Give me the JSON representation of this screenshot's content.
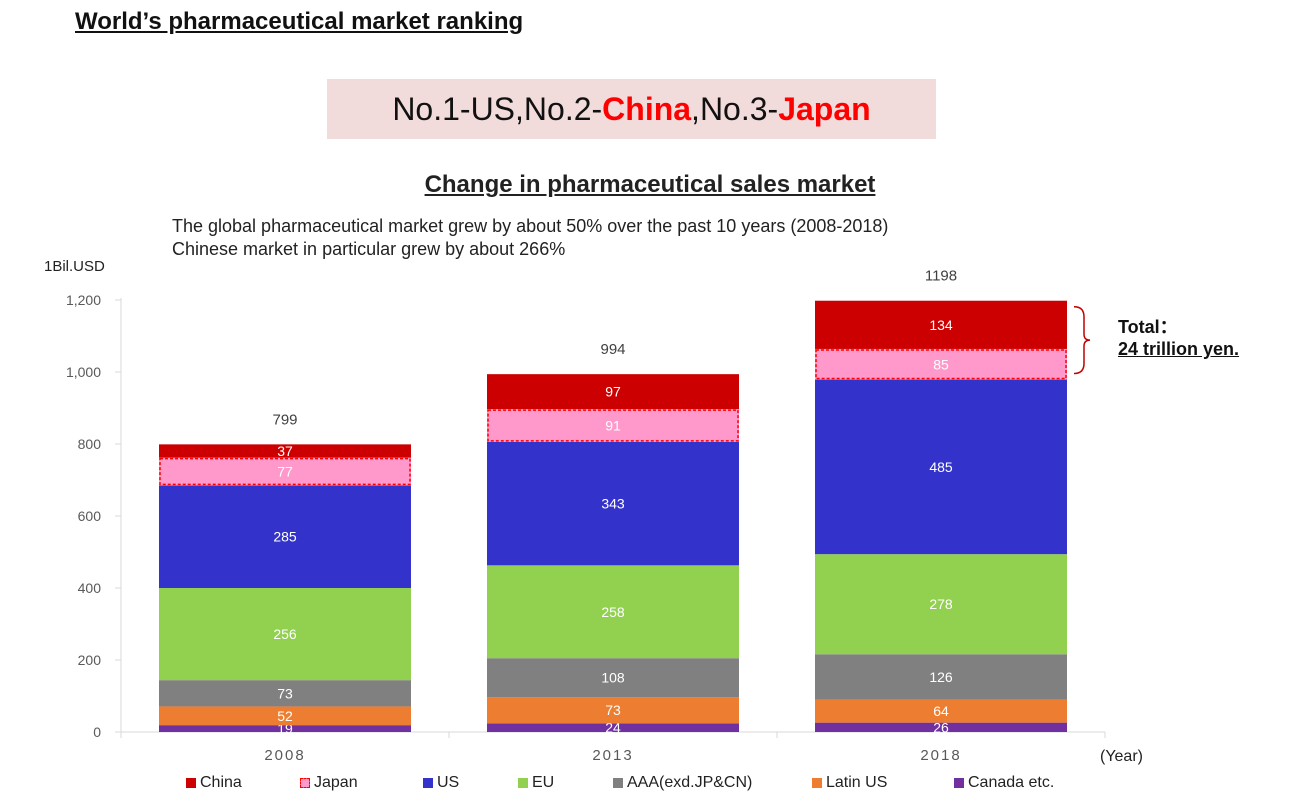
{
  "page": {
    "title": "World’s pharmaceutical market ranking",
    "ranking": {
      "part1": "No.1-US,No.2-",
      "china": "China",
      "part2": ",No.3-",
      "japan": "Japan"
    },
    "chart_heading": "Change in pharmaceutical sales market",
    "subtitle_line1": "The global pharmaceutical market grew by about 50% over the past 10 years (2008-2018)",
    "subtitle_line2": "Chinese market in particular grew by about 266%",
    "unit_label": "1Bil.USD",
    "year_label": "(Year)",
    "total_note_line1": "Total：",
    "total_note_line2": "24 trillion yen."
  },
  "chart_data": {
    "type": "bar",
    "stacked": true,
    "categories": [
      "2008",
      "2013",
      "2018"
    ],
    "totals": [
      799,
      994,
      1198
    ],
    "ylim": [
      0,
      1200
    ],
    "yticks": [
      0,
      200,
      400,
      600,
      800,
      1000,
      1200
    ],
    "ytick_labels": [
      "0",
      "200",
      "400",
      "600",
      "800",
      "1,000",
      "1,200"
    ],
    "ylabel": "1Bil.USD",
    "xlabel": "(Year)",
    "grid": false,
    "legend_position": "bottom",
    "series": [
      {
        "name": "Canada etc.",
        "color": "#7030a0",
        "values": [
          19,
          24,
          26
        ]
      },
      {
        "name": "Latin US",
        "color": "#ed7d31",
        "values": [
          52,
          73,
          64
        ]
      },
      {
        "name": "AAA(exd.JP&CN)",
        "color": "#808080",
        "values": [
          73,
          108,
          126
        ]
      },
      {
        "name": "EU",
        "color": "#92d050",
        "values": [
          256,
          258,
          278
        ]
      },
      {
        "name": "US",
        "color": "#3333cc",
        "values": [
          285,
          343,
          485
        ]
      },
      {
        "name": "Japan",
        "color": "#ff99cc",
        "values": [
          77,
          91,
          85
        ],
        "dashed_outline": "#ff0000"
      },
      {
        "name": "China",
        "color": "#cc0000",
        "values": [
          37,
          97,
          134
        ]
      }
    ],
    "legend_order": [
      "China",
      "Japan",
      "US",
      "EU",
      "AAA(exd.JP&CN)",
      "Latin US",
      "Canada etc."
    ]
  }
}
